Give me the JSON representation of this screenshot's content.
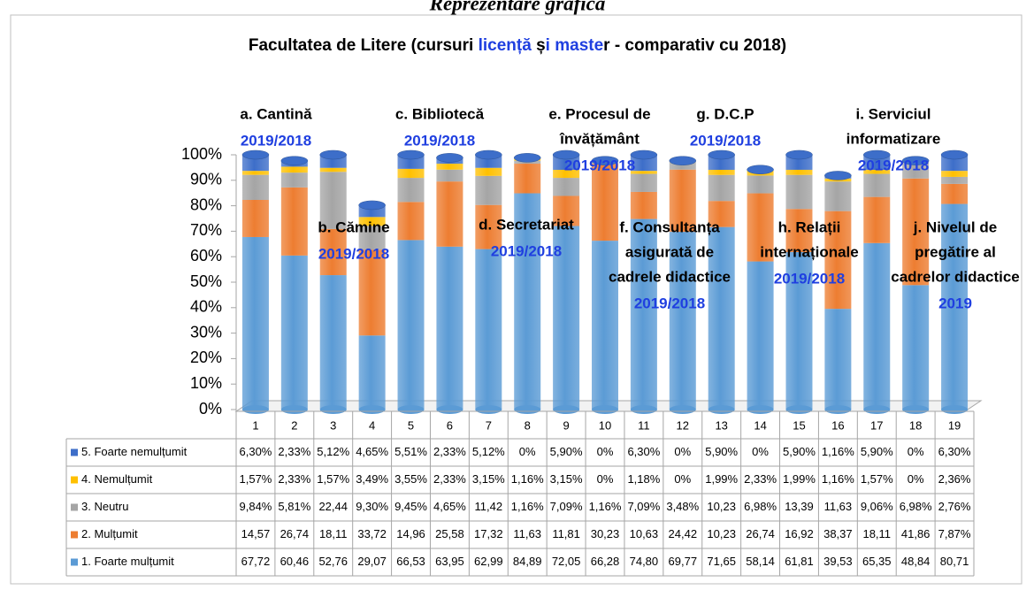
{
  "page_title": "Reprezentare grafică",
  "chart_data": {
    "type": "stacked_bar",
    "title_parts": [
      {
        "text": "Facultatea de Litere (cursuri ",
        "color": "#000000"
      },
      {
        "text": "licență",
        "color": "#1f3fe0"
      },
      {
        "text": " ș",
        "color": "#000000"
      },
      {
        "text": "i maste",
        "color": "#1f3fe0"
      },
      {
        "text": "r - comparativ cu 2018)",
        "color": "#000000"
      }
    ],
    "categories": [
      "1",
      "2",
      "3",
      "4",
      "5",
      "6",
      "7",
      "8",
      "9",
      "10",
      "11",
      "12",
      "13",
      "14",
      "15",
      "16",
      "17",
      "18",
      "19"
    ],
    "series": [
      {
        "name": "5. Foarte nemulțumit",
        "color": "#3d6ec9",
        "values": [
          6.3,
          2.33,
          5.12,
          4.65,
          5.51,
          2.33,
          5.12,
          0,
          5.9,
          0,
          6.3,
          0,
          5.9,
          0,
          5.9,
          1.16,
          5.9,
          0,
          6.3
        ],
        "value_labels": [
          "6,30%",
          "2,33%",
          "5,12%",
          "4,65%",
          "5,51%",
          "2,33%",
          "5,12%",
          "0%",
          "5,90%",
          "0%",
          "6,30%",
          "0%",
          "5,90%",
          "0%",
          "5,90%",
          "1,16%",
          "5,90%",
          "0%",
          "6,30%"
        ]
      },
      {
        "name": "4. Nemulțumit",
        "color": "#ffc000",
        "values": [
          1.57,
          2.33,
          1.57,
          3.49,
          3.55,
          2.33,
          3.15,
          1.16,
          3.15,
          0,
          1.18,
          0,
          1.99,
          2.33,
          1.99,
          1.16,
          1.57,
          0,
          2.36
        ],
        "value_labels": [
          "1,57%",
          "2,33%",
          "1,57%",
          "3,49%",
          "3,55%",
          "2,33%",
          "3,15%",
          "1,16%",
          "3,15%",
          "0%",
          "1,18%",
          "0%",
          "1,99%",
          "2,33%",
          "1,99%",
          "1,16%",
          "1,57%",
          "0%",
          "2,36%"
        ]
      },
      {
        "name": "3. Neutru",
        "color": "#a5a5a5",
        "values": [
          9.84,
          5.81,
          22.44,
          9.3,
          9.45,
          4.65,
          11.42,
          1.16,
          7.09,
          1.16,
          7.09,
          3.48,
          10.23,
          6.98,
          13.39,
          11.63,
          9.06,
          6.98,
          2.76
        ],
        "value_labels": [
          "9,84%",
          "5,81%",
          "22,44",
          "9,30%",
          "9,45%",
          "4,65%",
          "11,42",
          "1,16%",
          "7,09%",
          "1,16%",
          "7,09%",
          "3,48%",
          "10,23",
          "6,98%",
          "13,39",
          "11,63",
          "9,06%",
          "6,98%",
          "2,76%"
        ]
      },
      {
        "name": "2. Mulțumit",
        "color": "#ed7d31",
        "values": [
          14.57,
          26.74,
          18.11,
          33.72,
          14.96,
          25.58,
          17.32,
          11.63,
          11.81,
          30.23,
          10.63,
          24.42,
          10.23,
          26.74,
          16.92,
          38.37,
          18.11,
          41.86,
          7.87
        ],
        "value_labels": [
          "14,57",
          "26,74",
          "18,11",
          "33,72",
          "14,96",
          "25,58",
          "17,32",
          "11,63",
          "11,81",
          "30,23",
          "10,63",
          "24,42",
          "10,23",
          "26,74",
          "16,92",
          "38,37",
          "18,11",
          "41,86",
          "7,87%"
        ]
      },
      {
        "name": "1. Foarte mulțumit",
        "color": "#5b9bd5",
        "values": [
          67.72,
          60.46,
          52.76,
          29.07,
          66.53,
          63.95,
          62.99,
          84.89,
          72.05,
          66.28,
          74.8,
          69.77,
          71.65,
          58.14,
          61.81,
          39.53,
          65.35,
          48.84,
          80.71
        ],
        "value_labels": [
          "67,72",
          "60,46",
          "52,76",
          "29,07",
          "66,53",
          "63,95",
          "62,99",
          "84,89",
          "72,05",
          "66,28",
          "74,80",
          "69,77",
          "71,65",
          "58,14",
          "61,81",
          "39,53",
          "65,35",
          "48,84",
          "80,71"
        ]
      }
    ],
    "ylim": [
      0,
      100
    ],
    "yticks": [
      {
        "value": 0,
        "label": "0%"
      },
      {
        "value": 10,
        "label": "10%"
      },
      {
        "value": 20,
        "label": "20%"
      },
      {
        "value": 30,
        "label": "30%"
      },
      {
        "value": 40,
        "label": "40%"
      },
      {
        "value": 50,
        "label": "50%"
      },
      {
        "value": 60,
        "label": "60%"
      },
      {
        "value": 70,
        "label": "70%"
      },
      {
        "value": 80,
        "label": "80%"
      },
      {
        "value": 90,
        "label": "90%"
      },
      {
        "value": 100,
        "label": "100%"
      }
    ],
    "annotations": [
      {
        "lines": [
          "a. Cantină"
        ],
        "year": "2019/2018"
      },
      {
        "lines": [
          "b. Cămine"
        ],
        "year": "2019/2018"
      },
      {
        "lines": [
          "c. Bibliotecă"
        ],
        "year": "2019/2018"
      },
      {
        "lines": [
          "d. Secretariat"
        ],
        "year": "2019/2018"
      },
      {
        "lines": [
          "e. Procesul de",
          "învățământ"
        ],
        "year": "2019/2018"
      },
      {
        "lines": [
          "f. Consultanța",
          "asigurată de",
          "cadrele didactice"
        ],
        "year": "2019/2018"
      },
      {
        "lines": [
          "g. D.C.P"
        ],
        "year": "2019/2018"
      },
      {
        "lines": [
          "h. Relații",
          "internaționale"
        ],
        "year": "2019/2018"
      },
      {
        "lines": [
          "i. Serviciul",
          "informatizare"
        ],
        "year": "2019/2018"
      },
      {
        "lines": [
          "j. Nivelul de",
          "pregătire al",
          "cadrelor didactice"
        ],
        "year": "2019"
      }
    ]
  }
}
